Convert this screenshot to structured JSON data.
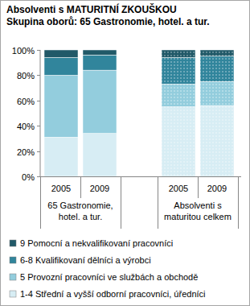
{
  "chart_data": {
    "type": "bar",
    "stacked": true,
    "title": "Absolventi s MATURITNÍ ZKOUŠKOU",
    "subtitle": "Skupina oborů: 65 Gastronomie, hotel. a tur.",
    "categories": [
      "2005",
      "2009",
      "2005",
      "2009"
    ],
    "groups": [
      {
        "label": [
          "65 Gastronomie,",
          "hotel. a tur."
        ]
      },
      {
        "label": [
          "Absolventi s",
          "maturitou celkem"
        ]
      }
    ],
    "series": [
      {
        "name": "1-4 Střední a vyšší odborní pracovníci, úředníci",
        "color": "#d7edf4",
        "values": [
          31,
          34,
          55,
          56
        ]
      },
      {
        "name": "5 Provozní pracovníci ve službách a obchodě",
        "color": "#93cddd",
        "values": [
          49,
          50,
          18,
          19
        ]
      },
      {
        "name": "6-8 Kvalifikovaní dělníci a výrobci",
        "color": "#31859c",
        "values": [
          14,
          12,
          21,
          20
        ]
      },
      {
        "name": "9 Pomocní a nekvalifikovaní pracovníci",
        "color": "#215968",
        "values": [
          6,
          4,
          6,
          5
        ]
      }
    ],
    "ylim": [
      0,
      100
    ],
    "yticks": [
      {
        "value": 0,
        "label": "0%"
      },
      {
        "value": 20,
        "label": "20%"
      },
      {
        "value": 40,
        "label": "40%"
      },
      {
        "value": 60,
        "label": "60%"
      },
      {
        "value": 80,
        "label": "80%"
      },
      {
        "value": 100,
        "label": "100%"
      }
    ],
    "grid": false,
    "legend": "bottom"
  }
}
